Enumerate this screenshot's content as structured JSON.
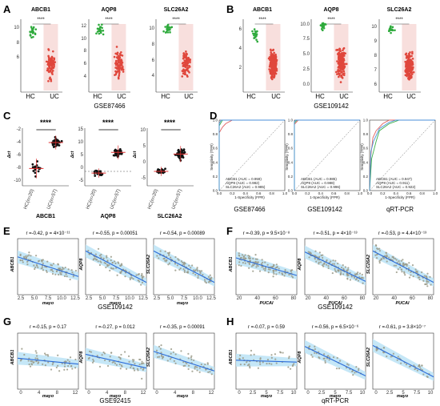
{
  "panels": {
    "A": {
      "letter": "A",
      "caption": "GSE87466",
      "groups": [
        "HC",
        "UC"
      ],
      "plots": [
        {
          "title": "ABCB1",
          "sig": "****",
          "yticks": [
            "6",
            "8",
            "10"
          ],
          "ylim": [
            4.5,
            11.5
          ]
        },
        {
          "title": "AQP8",
          "sig": "****",
          "yticks": [
            "4",
            "6",
            "8",
            "10",
            "12"
          ],
          "ylim": [
            2.5,
            13
          ]
        },
        {
          "title": "SLC26A2",
          "sig": "****",
          "yticks": [
            "4",
            "6",
            "8",
            "10"
          ],
          "ylim": [
            2.5,
            11.5
          ]
        }
      ]
    },
    "B": {
      "letter": "B",
      "caption": "GSE109142",
      "groups": [
        "HC",
        "UC"
      ],
      "plots": [
        {
          "title": "ABCB1",
          "sig": "****",
          "yticks": [
            "2",
            "4",
            "6"
          ],
          "ylim": [
            0.5,
            7.5
          ]
        },
        {
          "title": "AQP8",
          "sig": "****",
          "yticks": [
            "0.0",
            "2.5",
            "5.0",
            "7.5",
            "10.0"
          ],
          "ylim": [
            -0.5,
            11
          ]
        },
        {
          "title": "SLC26A2",
          "sig": "****",
          "yticks": [
            "6",
            "7",
            "8",
            "9",
            "10"
          ],
          "ylim": [
            5.5,
            10.5
          ]
        }
      ]
    },
    "C": {
      "letter": "C",
      "ylabel": "Δct",
      "plots": [
        {
          "gene": "ABCB1",
          "sig": "****",
          "hc_label": "HC(n=20)",
          "uc_label": "UC(n=57)",
          "yticks": [
            "-10",
            "-8",
            "-6",
            "-4",
            "-2"
          ],
          "ylim": [
            -11,
            -1
          ]
        },
        {
          "gene": "AQP8",
          "sig": "****",
          "hc_label": "HC(n=20)",
          "uc_label": "UC(n=57)",
          "yticks": [
            "-5",
            "0",
            "5",
            "10",
            "15"
          ],
          "ylim": [
            -6,
            16
          ]
        },
        {
          "gene": "SLC26A2",
          "sig": "****",
          "hc_label": "HC(n=20)",
          "uc_label": "UC(n=57)",
          "yticks": [
            "-5",
            "0",
            "5",
            "10"
          ],
          "ylim": [
            -6,
            11
          ]
        }
      ]
    },
    "D": {
      "letter": "D",
      "ylabel": "Sensitivity (TPR)",
      "xlabel": "1-Specificity (FPR)",
      "ticks": [
        "0.0",
        "0.2",
        "0.4",
        "0.6",
        "0.8",
        "1.0"
      ],
      "plots": [
        {
          "caption": "GSE87466",
          "legend": [
            "ABCB1 (AUC = 0.959)",
            "AQP8 (AUC = 0.982)",
            "SLC26A2 (AUC = 0.985)"
          ]
        },
        {
          "caption": "GSE109142",
          "legend": [
            "ABCB1 (AUC = 0.985)",
            "AQP8 (AUC = 0.988)",
            "SLC26A2 (AUC = 0.996)"
          ]
        },
        {
          "caption": "qRT-PCR",
          "legend": [
            "ABCB1 (AUC = 0.947)",
            "AQP8 (AUC = 0.911)",
            "SLC26A2 (AUC = 0.922)"
          ]
        }
      ]
    },
    "E": {
      "letter": "E",
      "caption": "GSE109142",
      "xlabel": "mayo",
      "xticks": [
        "2.5",
        "5.0",
        "7.5",
        "10.0",
        "12.5"
      ],
      "plots": [
        {
          "gene": "ABCB1",
          "stat": "r =-0.42, p = 4×10⁻¹¹"
        },
        {
          "gene": "AQP8",
          "stat": "r =-0.55, p = 0.00051"
        },
        {
          "gene": "SLC26A2",
          "stat": "r =-0.54, p = 0.00089"
        }
      ]
    },
    "F": {
      "letter": "F",
      "caption": "GSE109142",
      "xlabel": "PUCAI",
      "xticks": [
        "20",
        "40",
        "60",
        "80"
      ],
      "plots": [
        {
          "gene": "ABCB1",
          "stat": "r =-0.39, p = 9.5×10⁻⁸"
        },
        {
          "gene": "AQP8",
          "stat": "r =-0.51, p = 4×10⁻¹³"
        },
        {
          "gene": "SLC26A2",
          "stat": "r =-0.53, p = 4.4×10⁻¹³"
        }
      ]
    },
    "G": {
      "letter": "G",
      "caption": "GSE92415",
      "xlabel": "mayo",
      "xticks": [
        "0",
        "4",
        "8",
        "12"
      ],
      "plots": [
        {
          "gene": "ABCB1",
          "stat": "r =-0.15, p = 0.17"
        },
        {
          "gene": "AQP8",
          "stat": "r =-0.27, p = 0.012"
        },
        {
          "gene": "SLC26A2",
          "stat": "r =-0.35, p = 0.00091"
        }
      ]
    },
    "H": {
      "letter": "H",
      "caption": "qRT-PCR",
      "xlabel": "mayo",
      "xticks": [
        "0",
        "2.5",
        "5",
        "7.5",
        "10"
      ],
      "plots": [
        {
          "gene": "ABCB1",
          "stat": "r =-0.07, p = 0.59"
        },
        {
          "gene": "AQP8",
          "stat": "r =-0.56, p = 6.5×10⁻⁶"
        },
        {
          "gene": "SLC26A2",
          "stat": "r =-0.61, p = 3.8×10⁻⁷"
        }
      ]
    }
  },
  "colors": {
    "hc": "#2eaa3c",
    "uc": "#e0473c",
    "band_uc": "#f3c9c7",
    "roc": [
      "#e06060",
      "#3cb04a",
      "#4a8fd8"
    ],
    "fit": "#2a6ad8",
    "ci": "#bfe4f6",
    "point": "#9a9a88"
  }
}
